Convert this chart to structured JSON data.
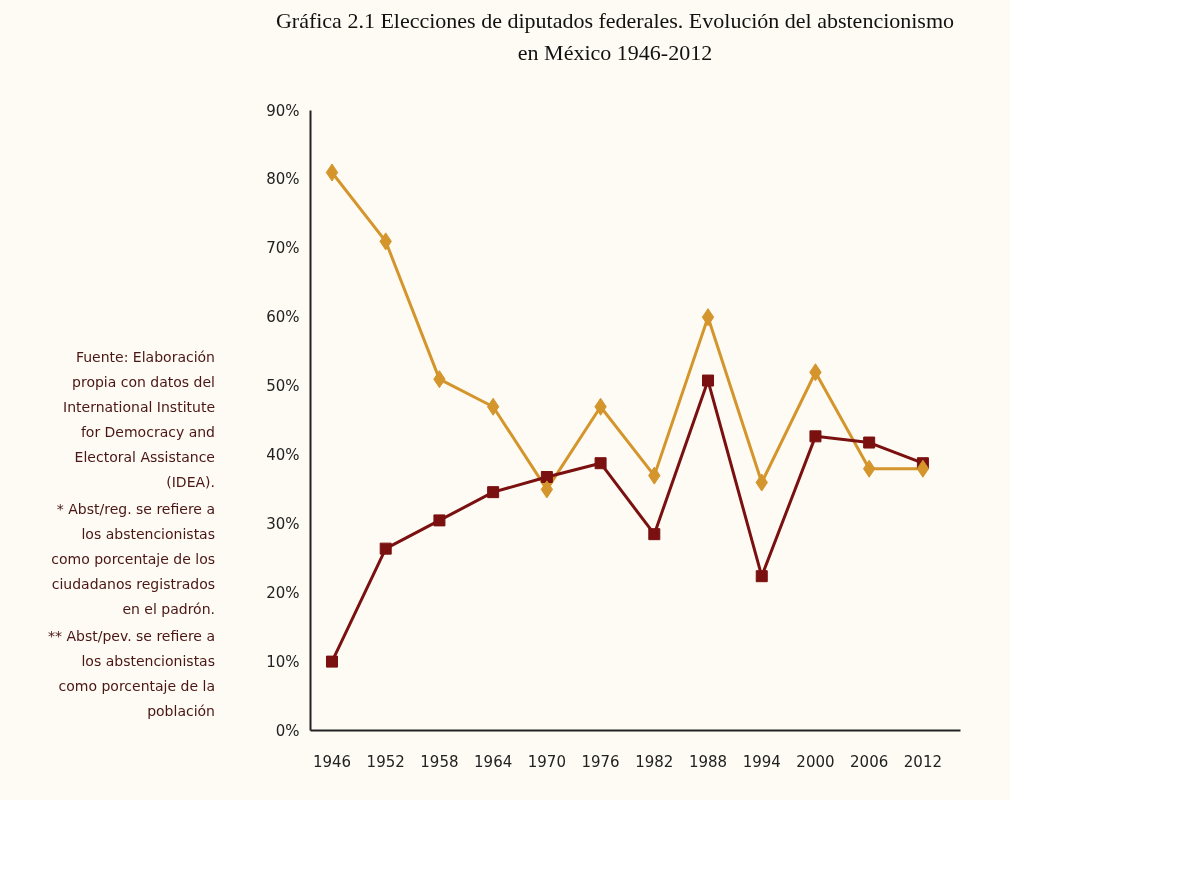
{
  "chart_data": {
    "type": "line",
    "title": "Gráfica 2.1 Elecciones de diputados federales. Evolución del abstencionismo\nen México 1946-2012",
    "categories": [
      "1946",
      "1952",
      "1958",
      "1964",
      "1970",
      "1976",
      "1982",
      "1988",
      "1994",
      "2000",
      "2006",
      "2012"
    ],
    "series": [
      {
        "color": "#d4952c",
        "marker": "diamond",
        "values": [
          81,
          71,
          51,
          47,
          35,
          47,
          37,
          60,
          36,
          52,
          38,
          38
        ]
      },
      {
        "color": "#7a1010",
        "marker": "square",
        "values": [
          10,
          26.4,
          30.5,
          34.6,
          36.8,
          38.8,
          28.5,
          50.8,
          22.4,
          42.7,
          41.8,
          38.8
        ]
      }
    ],
    "ylim": [
      0,
      90
    ],
    "yticks": [
      {
        "value": 0,
        "label": "0%"
      },
      {
        "value": 10,
        "label": "10%"
      },
      {
        "value": 20,
        "label": "20%"
      },
      {
        "value": 30,
        "label": "30%"
      },
      {
        "value": 40,
        "label": "40%"
      },
      {
        "value": 50,
        "label": "50%"
      },
      {
        "value": 60,
        "label": "60%"
      },
      {
        "value": 70,
        "label": "70%"
      },
      {
        "value": 80,
        "label": "80%"
      },
      {
        "value": 90,
        "label": "90%"
      }
    ],
    "grid": false,
    "line_style": "solid",
    "annotations": [
      "Fuente: Elaboración propia con datos del International Institute for Democracy and Electoral Assistance (IDEA).",
      "* Abst/reg. se refiere a los abstencionistas como porcentaje de los ciudadanos registrados en el padrón.",
      "** Abst/pev. se refiere a los abstencionistas como porcentaje de la población"
    ]
  }
}
